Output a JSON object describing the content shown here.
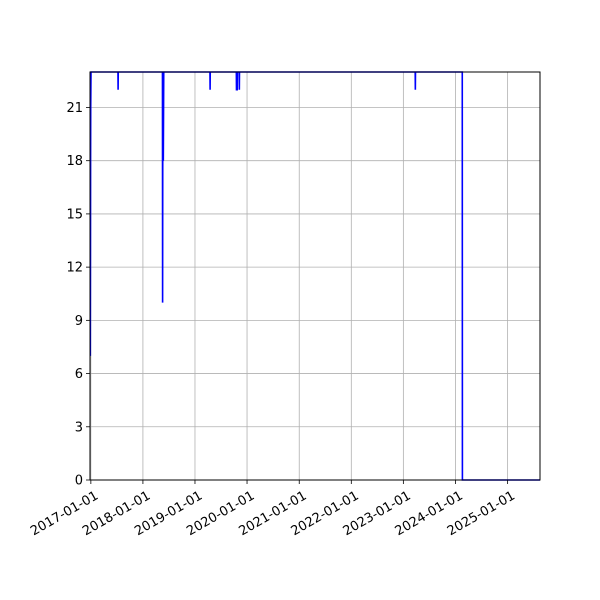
{
  "chart_data": {
    "type": "line",
    "title": "",
    "xlabel": "",
    "ylabel": "",
    "x_axis": {
      "type": "date",
      "range": [
        "2016-12-26",
        "2025-08-16"
      ],
      "ticks": [
        "2017-01-01",
        "2018-01-01",
        "2019-01-01",
        "2020-01-01",
        "2021-01-01",
        "2022-01-01",
        "2023-01-01",
        "2024-01-01",
        "2025-01-01"
      ]
    },
    "y_axis": {
      "range": [
        0,
        23
      ],
      "ticks": [
        0,
        3,
        6,
        9,
        12,
        15,
        18,
        21
      ]
    },
    "grid": true,
    "series": [
      {
        "color": "#0000ff",
        "points": [
          [
            "2016-12-28",
            7
          ],
          [
            "2016-12-29",
            12
          ],
          [
            "2016-12-30",
            18
          ],
          [
            "2016-12-31",
            21
          ],
          [
            "2017-01-02",
            23
          ],
          [
            "2017-01-05",
            23
          ],
          [
            "2017-07-10",
            23
          ],
          [
            "2017-07-11",
            22
          ],
          [
            "2017-07-12",
            23
          ],
          [
            "2018-05-18",
            23
          ],
          [
            "2018-05-19",
            10
          ],
          [
            "2018-05-20",
            18
          ],
          [
            "2018-05-22",
            22
          ],
          [
            "2018-05-24",
            18
          ],
          [
            "2018-05-27",
            23
          ],
          [
            "2019-04-16",
            23
          ],
          [
            "2019-04-17",
            22
          ],
          [
            "2019-04-18",
            23
          ],
          [
            "2019-10-18",
            23
          ],
          [
            "2019-10-19",
            22
          ],
          [
            "2019-10-24",
            22
          ],
          [
            "2019-10-25",
            23
          ],
          [
            "2019-11-07",
            23
          ],
          [
            "2019-11-08",
            22
          ],
          [
            "2019-11-09",
            23
          ],
          [
            "2023-03-25",
            23
          ],
          [
            "2023-03-26",
            22
          ],
          [
            "2023-03-27",
            23
          ],
          [
            "2024-02-18",
            23
          ],
          [
            "2024-02-19",
            0
          ],
          [
            "2025-08-16",
            0
          ]
        ]
      }
    ]
  }
}
